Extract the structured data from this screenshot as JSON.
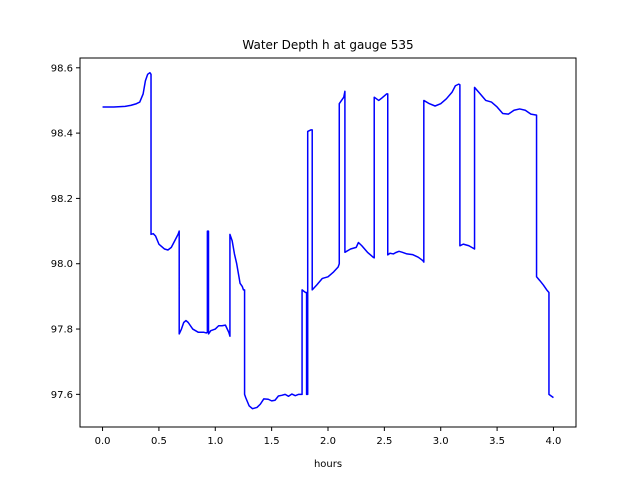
{
  "chart_data": {
    "type": "line",
    "title": "Water Depth h at gauge 535",
    "xlabel": "hours",
    "ylabel": "",
    "xlim": [
      -0.2,
      4.2
    ],
    "ylim": [
      97.5,
      98.63
    ],
    "grid": false,
    "xticks": [
      0.0,
      0.5,
      1.0,
      1.5,
      2.0,
      2.5,
      3.0,
      3.5,
      4.0
    ],
    "xtick_labels": [
      "0.0",
      "0.5",
      "1.0",
      "1.5",
      "2.0",
      "2.5",
      "3.0",
      "3.5",
      "4.0"
    ],
    "yticks": [
      97.6,
      97.8,
      98.0,
      98.2,
      98.4,
      98.6
    ],
    "ytick_labels": [
      "97.6",
      "97.8",
      "98.0",
      "98.2",
      "98.4",
      "98.6"
    ],
    "series": [
      {
        "color": "#0000ff",
        "x": [
          0.0,
          0.1,
          0.2,
          0.25,
          0.3,
          0.33,
          0.36,
          0.38,
          0.4,
          0.42,
          0.43,
          0.43,
          0.45,
          0.47,
          0.5,
          0.55,
          0.58,
          0.61,
          0.64,
          0.67,
          0.68,
          0.68,
          0.7,
          0.72,
          0.74,
          0.76,
          0.8,
          0.85,
          0.9,
          0.92,
          0.93,
          0.93,
          0.94,
          0.94,
          0.96,
          1.0,
          1.03,
          1.06,
          1.09,
          1.12,
          1.13,
          1.13,
          1.15,
          1.17,
          1.19,
          1.21,
          1.22,
          1.24,
          1.25,
          1.26,
          1.26,
          1.27,
          1.3,
          1.33,
          1.37,
          1.4,
          1.43,
          1.47,
          1.5,
          1.53,
          1.56,
          1.59,
          1.62,
          1.65,
          1.68,
          1.71,
          1.74,
          1.77,
          1.77,
          1.8,
          1.81,
          1.81,
          1.82,
          1.82,
          1.85,
          1.86,
          1.86,
          1.9,
          1.95,
          2.0,
          2.05,
          2.09,
          2.1,
          2.1,
          2.14,
          2.15,
          2.15,
          2.2,
          2.25,
          2.27,
          2.3,
          2.35,
          2.38,
          2.4,
          2.41,
          2.41,
          2.45,
          2.48,
          2.52,
          2.53,
          2.53,
          2.55,
          2.58,
          2.6,
          2.63,
          2.66,
          2.7,
          2.75,
          2.8,
          2.82,
          2.84,
          2.85,
          2.85,
          2.9,
          2.95,
          3.0,
          3.05,
          3.1,
          3.13,
          3.16,
          3.17,
          3.17,
          3.2,
          3.25,
          3.3,
          3.3,
          3.35,
          3.4,
          3.45,
          3.5,
          3.55,
          3.6,
          3.65,
          3.7,
          3.75,
          3.8,
          3.85,
          3.85,
          3.88,
          3.91,
          3.94,
          3.96,
          3.96,
          3.98,
          4.0
        ],
        "y": [
          98.48,
          98.48,
          98.482,
          98.485,
          98.49,
          98.495,
          98.52,
          98.56,
          98.58,
          98.585,
          98.58,
          98.09,
          98.092,
          98.085,
          98.06,
          98.045,
          98.042,
          98.05,
          98.07,
          98.09,
          98.1,
          97.785,
          97.8,
          97.82,
          97.826,
          97.82,
          97.8,
          97.79,
          97.79,
          97.788,
          97.79,
          98.1,
          98.1,
          97.785,
          97.795,
          97.8,
          97.81,
          97.81,
          97.812,
          97.79,
          97.778,
          98.09,
          98.07,
          98.03,
          98.0,
          97.96,
          97.94,
          97.93,
          97.92,
          97.92,
          97.6,
          97.59,
          97.565,
          97.556,
          97.56,
          97.57,
          97.586,
          97.585,
          97.58,
          97.582,
          97.595,
          97.597,
          97.6,
          97.594,
          97.601,
          97.596,
          97.6,
          97.6,
          97.92,
          97.912,
          97.912,
          97.6,
          97.6,
          98.405,
          98.41,
          98.41,
          97.92,
          97.935,
          97.955,
          97.96,
          97.975,
          97.99,
          98.0,
          98.49,
          98.51,
          98.528,
          98.035,
          98.045,
          98.05,
          98.065,
          98.055,
          98.035,
          98.026,
          98.02,
          98.018,
          98.51,
          98.5,
          98.508,
          98.52,
          98.52,
          98.027,
          98.032,
          98.03,
          98.034,
          98.038,
          98.035,
          98.03,
          98.028,
          98.02,
          98.015,
          98.01,
          98.005,
          98.5,
          98.49,
          98.483,
          98.49,
          98.505,
          98.525,
          98.545,
          98.55,
          98.548,
          98.055,
          98.06,
          98.055,
          98.045,
          98.54,
          98.52,
          98.5,
          98.495,
          98.48,
          98.46,
          98.458,
          98.47,
          98.474,
          98.47,
          98.458,
          98.455,
          97.96,
          97.948,
          97.935,
          97.92,
          97.912,
          97.6,
          97.595,
          97.59
        ]
      }
    ]
  }
}
